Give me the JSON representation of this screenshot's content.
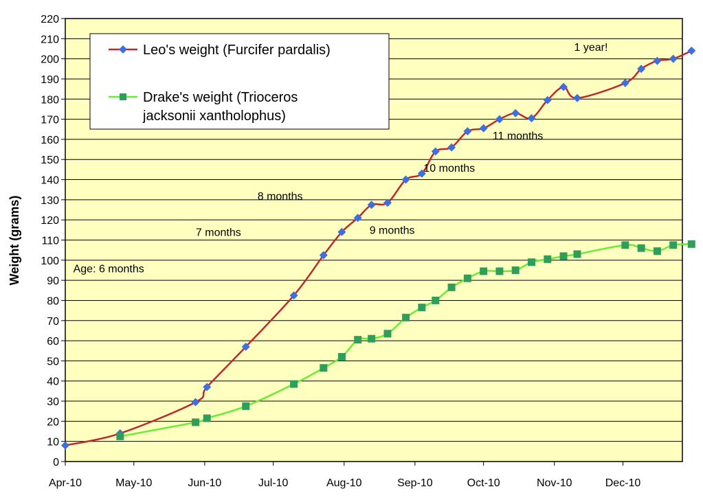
{
  "chart_data": {
    "type": "line",
    "title": "",
    "xlabel": "",
    "ylabel": "Weight (grams)",
    "ylim": [
      0,
      220
    ],
    "ytick_step": 10,
    "x_tick_labels": [
      "Apr-10",
      "May-10",
      "Jun-10",
      "Jul-10",
      "Aug-10",
      "Sep-10",
      "Oct-10",
      "Nov-10",
      "Dec-10"
    ],
    "xlim_days": [
      0,
      270
    ],
    "x_tick_days": [
      0,
      30,
      61,
      91,
      122,
      153,
      183,
      214,
      244
    ],
    "colors": {
      "plot_bg": "#FFFFC0",
      "leo_line": "#C0272D",
      "leo_marker": "#3D6FE0",
      "drake_line": "#66EE33",
      "drake_marker": "#2E9E5A"
    },
    "series": [
      {
        "name": "Leo's weight (Furcifer pardalis)",
        "marker": "diamond",
        "points": [
          [
            0,
            8
          ],
          [
            24,
            14
          ],
          [
            57,
            29.5
          ],
          [
            62,
            37
          ],
          [
            79,
            57
          ],
          [
            100,
            82.5
          ],
          [
            113,
            102.5
          ],
          [
            121,
            114
          ],
          [
            128,
            121
          ],
          [
            134,
            127.5
          ],
          [
            141,
            128.5
          ],
          [
            149,
            140
          ],
          [
            156,
            143
          ],
          [
            162,
            154
          ],
          [
            169,
            156
          ],
          [
            176,
            164
          ],
          [
            183,
            165.5
          ],
          [
            190,
            170
          ],
          [
            197,
            173
          ],
          [
            204,
            170.5
          ],
          [
            211,
            179.5
          ],
          [
            218,
            186
          ],
          [
            224,
            180.5
          ],
          [
            245,
            188
          ],
          [
            252,
            195
          ],
          [
            259,
            199
          ],
          [
            266,
            200
          ],
          [
            274,
            204
          ]
        ]
      },
      {
        "name": "Drake's weight (Trioceros jacksonii xantholophus)",
        "marker": "square",
        "points": [
          [
            24,
            12.5
          ],
          [
            57,
            19.5
          ],
          [
            62,
            21.5
          ],
          [
            79,
            27.5
          ],
          [
            100,
            38.5
          ],
          [
            113,
            46.5
          ],
          [
            121,
            52
          ],
          [
            128,
            60.5
          ],
          [
            134,
            61
          ],
          [
            141,
            63.5
          ],
          [
            149,
            71.5
          ],
          [
            156,
            76.5
          ],
          [
            162,
            80
          ],
          [
            169,
            86.5
          ],
          [
            176,
            91
          ],
          [
            183,
            94.5
          ],
          [
            190,
            94.5
          ],
          [
            197,
            95
          ],
          [
            204,
            99
          ],
          [
            211,
            100.5
          ],
          [
            218,
            102
          ],
          [
            224,
            103
          ],
          [
            245,
            107.5
          ],
          [
            252,
            106
          ],
          [
            259,
            104.5
          ],
          [
            266,
            107.5
          ],
          [
            274,
            108
          ]
        ]
      }
    ],
    "annotations": [
      {
        "text": "Age: 6 months",
        "day": 19,
        "y": 94
      },
      {
        "text": "7 months",
        "day": 67,
        "y": 112
      },
      {
        "text": "8 months",
        "day": 94,
        "y": 130
      },
      {
        "text": "9 months",
        "day": 143,
        "y": 113
      },
      {
        "text": "10 months",
        "day": 168,
        "y": 144
      },
      {
        "text": "11 months",
        "day": 198,
        "y": 160
      },
      {
        "text": "1 year!",
        "day": 230,
        "y": 204
      }
    ],
    "legend": {
      "position": "top-left"
    }
  }
}
